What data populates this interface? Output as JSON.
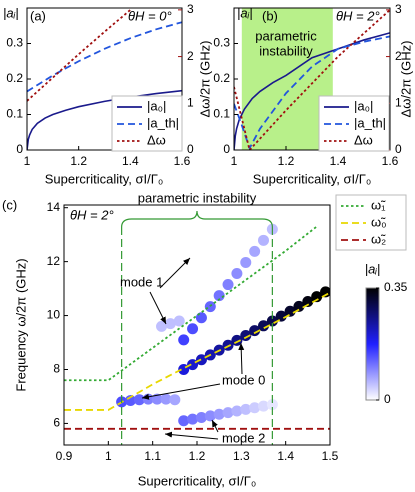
{
  "chart_data": [
    {
      "type": "line",
      "panel_label": "(a)",
      "annotation": "θH = 0°",
      "ylabel": "|aᵢ|",
      "y2label": "Δω/2π (GHz)",
      "xlabel": "Supercriticality, σI/Γ₀",
      "xlim": [
        1,
        1.6
      ],
      "xticks": [
        1,
        1.2,
        1.4,
        1.6
      ],
      "ylim": [
        0,
        0.4
      ],
      "yticks": [
        0,
        0.1,
        0.2,
        0.3
      ],
      "y2lim": [
        0,
        3.04
      ],
      "y2ticks": [
        0,
        1,
        2,
        3
      ],
      "y2color": "#a01010",
      "legend": "lower right",
      "series": [
        {
          "name": "|a₀|",
          "color": "#1a1a8c",
          "dash": "solid",
          "x": [
            1,
            1.005,
            1.01,
            1.02,
            1.04,
            1.07,
            1.1,
            1.15,
            1.2,
            1.3,
            1.4,
            1.5,
            1.6
          ],
          "values": [
            0,
            0.03,
            0.042,
            0.058,
            0.075,
            0.09,
            0.1,
            0.112,
            0.122,
            0.137,
            0.149,
            0.159,
            0.167
          ]
        },
        {
          "name": "|a_th|",
          "color": "#2255dd",
          "dash": "dashed",
          "x": [
            1,
            1.1,
            1.2,
            1.3,
            1.4,
            1.5,
            1.6
          ],
          "values": [
            0.165,
            0.21,
            0.25,
            0.285,
            0.315,
            0.34,
            0.36
          ]
        },
        {
          "name": "Δω",
          "color": "#a01010",
          "dash": "dotted",
          "axis": "y2",
          "x": [
            1,
            1.1,
            1.2,
            1.3,
            1.4
          ],
          "values": [
            1.05,
            1.55,
            2.05,
            2.53,
            3.0
          ]
        }
      ]
    },
    {
      "type": "line",
      "panel_label": "(b)",
      "annotation": "θH = 2°",
      "ylabel": "|aᵢ|",
      "y2label": "Δω/2π (GHz)",
      "xlabel": "Supercriticality, σI/Γ₀",
      "xlim": [
        1,
        1.6
      ],
      "xticks": [
        1,
        1.2,
        1.4,
        1.6
      ],
      "ylim": [
        0,
        0.4
      ],
      "yticks": [
        0,
        0.1,
        0.2,
        0.3
      ],
      "y2lim": [
        0,
        3.04
      ],
      "y2ticks": [
        0,
        1,
        2,
        3
      ],
      "y2color": "#a01010",
      "legend": "lower right",
      "shade": [
        1.03,
        1.38
      ],
      "shade_color": "#b8f08a",
      "shade_label": [
        "parametric",
        "instability"
      ],
      "shade_label_color": "#2a8a2a",
      "series": [
        {
          "name": "|a₀|",
          "color": "#1a1a8c",
          "dash": "solid",
          "x": [
            1,
            1.005,
            1.01,
            1.02,
            1.04,
            1.07,
            1.1,
            1.15,
            1.2,
            1.3,
            1.4,
            1.5,
            1.6
          ],
          "values": [
            0,
            0.04,
            0.06,
            0.085,
            0.115,
            0.145,
            0.165,
            0.19,
            0.21,
            0.26,
            0.285,
            0.31,
            0.33
          ]
        },
        {
          "name": "|a_th|",
          "color": "#2255dd",
          "dash": "dashed",
          "x": [
            1,
            1.03,
            1.06,
            1.1,
            1.2,
            1.3,
            1.4,
            1.5,
            1.6
          ],
          "values": [
            0.13,
            0.07,
            0.005,
            0.06,
            0.16,
            0.235,
            0.285,
            0.305,
            0.32
          ]
        },
        {
          "name": "Δω",
          "color": "#a01010",
          "dash": "dotted",
          "axis": "y2",
          "x": [
            1,
            1.06,
            1.2,
            1.4,
            1.6
          ],
          "values": [
            1.35,
            0,
            0.85,
            2.0,
            3.0
          ]
        }
      ]
    },
    {
      "type": "line",
      "panel_label": "(c)",
      "annotation": "θH = 2°",
      "ylabel": "Frequency ω/2π (GHz)",
      "xlabel": "Supercriticality, σI/Γ₀",
      "xlim": [
        0.9,
        1.5
      ],
      "xticks": [
        0.9,
        1,
        1.1,
        1.2,
        1.3,
        1.4,
        1.5
      ],
      "ylim": [
        5.2,
        14.1
      ],
      "yticks": [
        6,
        8,
        10,
        12,
        14
      ],
      "vlines": [
        1.03,
        1.37
      ],
      "vline_color": "#339933",
      "vline_label": "parametric instability",
      "legend": "outside upper right",
      "annotations": [
        "mode 1",
        "mode 0",
        "mode 2"
      ],
      "colorbar": {
        "label": "|aᵢ|",
        "clim": [
          0,
          0.35
        ],
        "ticks": [
          0.35,
          0
        ],
        "colormap": [
          "#ffffff",
          "#2020ff",
          "#000000"
        ]
      },
      "series": [
        {
          "x": [
            1.03,
            1.05,
            1.07,
            1.09,
            1.11,
            1.13,
            1.15
          ],
          "values": [
            6.8,
            6.85,
            6.88,
            6.9,
            6.9,
            6.9,
            6.88
          ],
          "amplitude": [
            0.14,
            0.13,
            0.12,
            0.1,
            0.09,
            0.08,
            0.07
          ]
        },
        {
          "x": [
            1.12,
            1.14,
            1.16
          ],
          "values": [
            9.6,
            9.7,
            9.8
          ],
          "amplitude": [
            0.05,
            0.05,
            0.05
          ]
        },
        {
          "x": [
            1.17,
            1.19,
            1.21,
            1.23,
            1.25,
            1.27,
            1.29,
            1.31,
            1.33,
            1.35,
            1.37
          ],
          "values": [
            9.1,
            9.51,
            9.92,
            10.33,
            10.74,
            11.15,
            11.56,
            11.97,
            12.38,
            12.79,
            13.2
          ],
          "amplitude": [
            0.15,
            0.14,
            0.13,
            0.12,
            0.11,
            0.1,
            0.09,
            0.08,
            0.07,
            0.06,
            0.05
          ]
        },
        {
          "x": [
            1.17,
            1.19,
            1.21,
            1.23,
            1.25,
            1.27,
            1.29,
            1.31,
            1.33,
            1.35,
            1.37
          ],
          "values": [
            6.1,
            6.16,
            6.22,
            6.28,
            6.34,
            6.4,
            6.46,
            6.52,
            6.58,
            6.64,
            6.7
          ],
          "amplitude": [
            0.12,
            0.11,
            0.1,
            0.09,
            0.08,
            0.07,
            0.06,
            0.05,
            0.04,
            0.03,
            0.02
          ]
        },
        {
          "x": [
            1.17,
            1.19,
            1.21,
            1.23,
            1.25,
            1.27,
            1.29,
            1.31,
            1.33,
            1.35,
            1.37,
            1.39,
            1.41,
            1.43,
            1.45,
            1.47,
            1.49
          ],
          "values": [
            8.0,
            8.18,
            8.36,
            8.54,
            8.72,
            8.9,
            9.08,
            9.26,
            9.44,
            9.62,
            9.8,
            9.98,
            10.16,
            10.34,
            10.52,
            10.7,
            10.88
          ],
          "amplitude": [
            0.2,
            0.21,
            0.22,
            0.23,
            0.24,
            0.25,
            0.26,
            0.27,
            0.28,
            0.29,
            0.3,
            0.31,
            0.32,
            0.33,
            0.34,
            0.35,
            0.35
          ]
        },
        {
          "name": "ω̃₁",
          "color": "#33aa33",
          "dash": "dotted",
          "x": [
            0.9,
            1.0,
            1.1,
            1.2,
            1.3,
            1.4,
            1.47
          ],
          "values": [
            7.6,
            7.6,
            8.8,
            10.0,
            11.2,
            12.4,
            13.3
          ]
        },
        {
          "name": "ω̃₀",
          "color": "#e8d800",
          "dash": "dashed",
          "x": [
            0.9,
            1.0,
            1.1,
            1.2,
            1.3,
            1.4,
            1.5
          ],
          "values": [
            6.5,
            6.5,
            7.45,
            8.3,
            9.1,
            9.95,
            10.85
          ]
        },
        {
          "name": "ω̃₂",
          "color": "#a01010",
          "dash": "dashed",
          "x": [
            0.9,
            1.5
          ],
          "values": [
            5.8,
            5.8
          ]
        }
      ]
    }
  ]
}
